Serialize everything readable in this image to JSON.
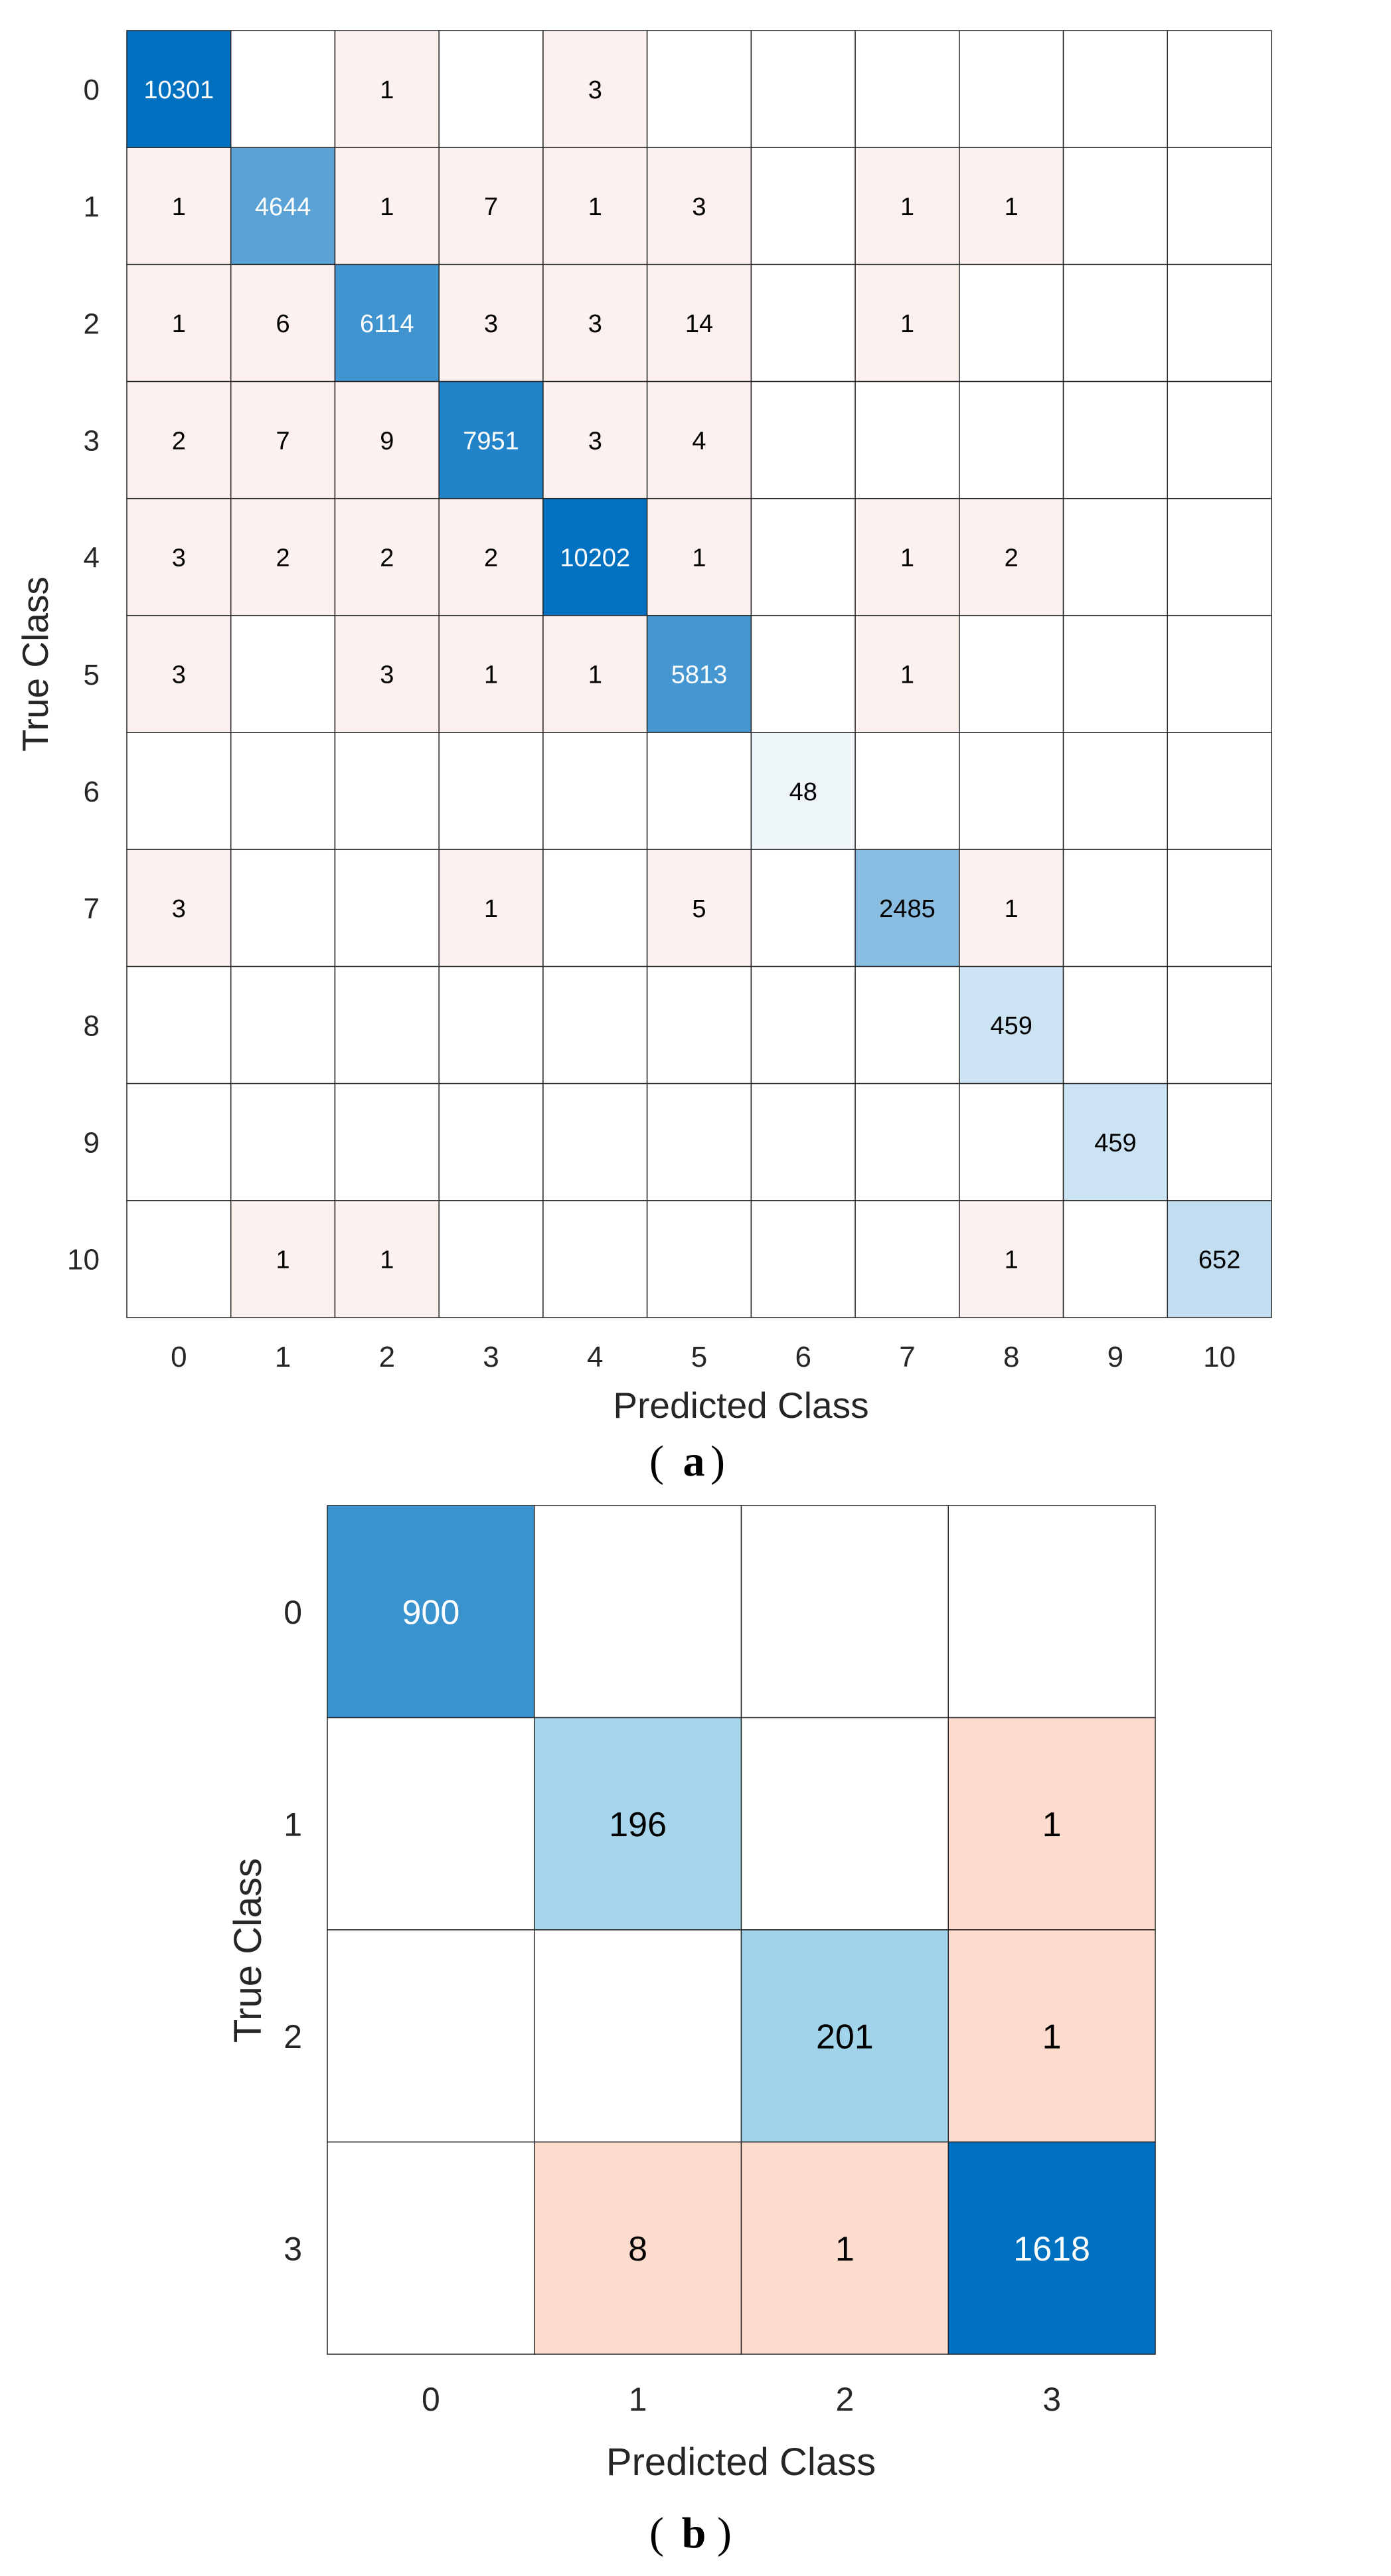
{
  "chart_data": [
    {
      "type": "heatmap",
      "subtype": "confusion-matrix",
      "panel_label": "a",
      "xlabel": "Predicted Class",
      "ylabel": "True Class",
      "row_labels": [
        "0",
        "1",
        "2",
        "3",
        "4",
        "5",
        "6",
        "7",
        "8",
        "9",
        "10"
      ],
      "col_labels": [
        "0",
        "1",
        "2",
        "3",
        "4",
        "5",
        "6",
        "7",
        "8",
        "9",
        "10"
      ],
      "values": [
        [
          10301,
          0,
          1,
          0,
          3,
          0,
          0,
          0,
          0,
          0,
          0
        ],
        [
          1,
          4644,
          1,
          7,
          1,
          3,
          0,
          1,
          1,
          0,
          0
        ],
        [
          1,
          6,
          6114,
          3,
          3,
          14,
          0,
          1,
          0,
          0,
          0
        ],
        [
          2,
          7,
          9,
          7951,
          3,
          4,
          0,
          0,
          0,
          0,
          0
        ],
        [
          3,
          2,
          2,
          2,
          10202,
          1,
          0,
          1,
          2,
          0,
          0
        ],
        [
          3,
          0,
          3,
          1,
          1,
          5813,
          0,
          1,
          0,
          0,
          0
        ],
        [
          0,
          0,
          0,
          0,
          0,
          0,
          48,
          0,
          0,
          0,
          0
        ],
        [
          3,
          0,
          0,
          1,
          0,
          5,
          0,
          2485,
          1,
          0,
          0
        ],
        [
          0,
          0,
          0,
          0,
          0,
          0,
          0,
          0,
          459,
          0,
          0
        ],
        [
          0,
          0,
          0,
          0,
          0,
          0,
          0,
          0,
          0,
          459,
          0
        ],
        [
          0,
          1,
          1,
          0,
          0,
          0,
          0,
          0,
          1,
          0,
          652
        ]
      ],
      "colors": {
        "diag_dark": "#0070c0",
        "diag_light": "#eef6fa",
        "off_diag": "#fdf1ef",
        "off_diag_strong": "#fddccd",
        "grid": "#262626"
      }
    },
    {
      "type": "heatmap",
      "subtype": "confusion-matrix",
      "panel_label": "b",
      "xlabel": "Predicted Class",
      "ylabel": "True Class",
      "row_labels": [
        "0",
        "1",
        "2",
        "3"
      ],
      "col_labels": [
        "0",
        "1",
        "2",
        "3"
      ],
      "values": [
        [
          900,
          0,
          0,
          0
        ],
        [
          0,
          196,
          0,
          1
        ],
        [
          0,
          0,
          201,
          1
        ],
        [
          0,
          8,
          1,
          1618
        ]
      ],
      "colors": {
        "diag_dark": "#0070c0",
        "diag_light": "#a7d6ec",
        "off_diag": "#fddccd",
        "off_diag_strong": "#fddccd",
        "grid": "#262626"
      }
    }
  ]
}
